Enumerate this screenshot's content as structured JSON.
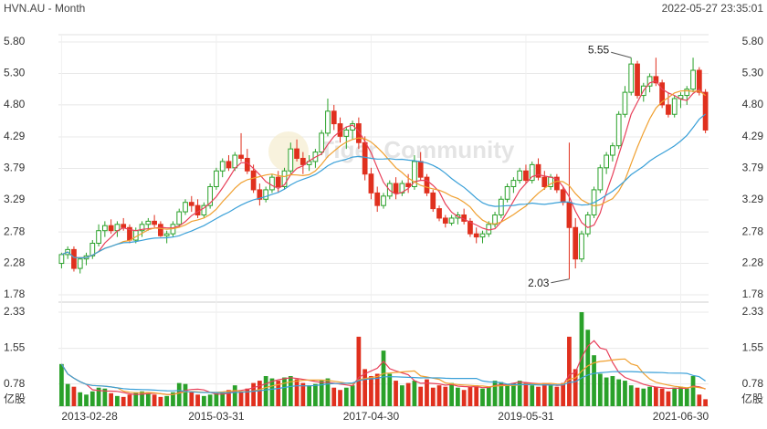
{
  "header": {
    "title": "HVN.AU - Month",
    "timestamp": "2022-05-27 23:35:01"
  },
  "watermark": "Tiger Community",
  "colors": {
    "up": "#2aa12a",
    "down": "#e0301e",
    "ma_fast": "#e8405a",
    "ma_mid": "#f0a030",
    "ma_slow": "#3aa0d8",
    "grid": "#e8e8e8"
  },
  "chart_data": [
    {
      "type": "candlestick",
      "title": "",
      "ylabel": "",
      "ylim": [
        1.78,
        5.8
      ],
      "y_ticks": [
        "5.80",
        "5.30",
        "4.80",
        "4.29",
        "3.79",
        "3.29",
        "2.78",
        "2.28",
        "1.78"
      ],
      "x_ticks": [
        "2013-02-28",
        "2015-03-31",
        "2017-04-30",
        "2019-05-31",
        "2021-06-30"
      ],
      "annotations": [
        {
          "label": "5.55",
          "value": 5.55
        },
        {
          "label": "2.03",
          "value": 2.03
        }
      ],
      "candles": [
        [
          2.28,
          2.45,
          2.2,
          2.42
        ],
        [
          2.42,
          2.55,
          2.35,
          2.5
        ],
        [
          2.5,
          2.55,
          2.15,
          2.2
        ],
        [
          2.2,
          2.38,
          2.12,
          2.35
        ],
        [
          2.35,
          2.45,
          2.25,
          2.4
        ],
        [
          2.4,
          2.65,
          2.35,
          2.6
        ],
        [
          2.6,
          2.9,
          2.55,
          2.8
        ],
        [
          2.8,
          2.95,
          2.7,
          2.88
        ],
        [
          2.88,
          2.98,
          2.75,
          2.8
        ],
        [
          2.8,
          2.95,
          2.7,
          2.9
        ],
        [
          2.9,
          3.0,
          2.8,
          2.85
        ],
        [
          2.85,
          2.9,
          2.6,
          2.65
        ],
        [
          2.65,
          2.85,
          2.6,
          2.8
        ],
        [
          2.8,
          2.95,
          2.7,
          2.9
        ],
        [
          2.9,
          3.0,
          2.8,
          2.95
        ],
        [
          2.95,
          3.05,
          2.85,
          2.9
        ],
        [
          2.9,
          2.95,
          2.7,
          2.72
        ],
        [
          2.72,
          2.8,
          2.6,
          2.75
        ],
        [
          2.75,
          2.95,
          2.7,
          2.9
        ],
        [
          2.9,
          3.15,
          2.85,
          3.1
        ],
        [
          3.1,
          3.3,
          3.05,
          3.25
        ],
        [
          3.25,
          3.35,
          3.1,
          3.2
        ],
        [
          3.2,
          3.3,
          3.0,
          3.05
        ],
        [
          3.05,
          3.25,
          3.0,
          3.2
        ],
        [
          3.2,
          3.55,
          3.15,
          3.5
        ],
        [
          3.5,
          3.8,
          3.45,
          3.75
        ],
        [
          3.75,
          3.95,
          3.65,
          3.9
        ],
        [
          3.9,
          4.0,
          3.75,
          3.8
        ],
        [
          3.8,
          4.05,
          3.75,
          4.0
        ],
        [
          4.0,
          4.35,
          3.9,
          3.95
        ],
        [
          3.95,
          4.1,
          3.7,
          3.75
        ],
        [
          3.75,
          3.85,
          3.4,
          3.45
        ],
        [
          3.45,
          3.55,
          3.2,
          3.3
        ],
        [
          3.3,
          3.5,
          3.25,
          3.45
        ],
        [
          3.45,
          3.7,
          3.4,
          3.65
        ],
        [
          3.65,
          3.75,
          3.4,
          3.5
        ],
        [
          3.5,
          3.8,
          3.45,
          3.75
        ],
        [
          3.75,
          4.2,
          3.7,
          4.1
        ],
        [
          4.1,
          4.25,
          3.9,
          3.95
        ],
        [
          3.95,
          4.05,
          3.7,
          3.85
        ],
        [
          3.85,
          4.0,
          3.75,
          3.9
        ],
        [
          3.9,
          4.1,
          3.8,
          4.05
        ],
        [
          4.05,
          4.4,
          4.0,
          4.35
        ],
        [
          4.35,
          4.9,
          4.3,
          4.7
        ],
        [
          4.7,
          4.8,
          4.4,
          4.5
        ],
        [
          4.5,
          4.6,
          4.2,
          4.3
        ],
        [
          4.3,
          4.45,
          4.1,
          4.4
        ],
        [
          4.4,
          4.55,
          4.25,
          4.5
        ],
        [
          4.5,
          4.6,
          4.1,
          4.2
        ],
        [
          4.2,
          4.3,
          3.6,
          3.7
        ],
        [
          3.7,
          3.8,
          3.3,
          3.4
        ],
        [
          3.4,
          3.5,
          3.1,
          3.2
        ],
        [
          3.2,
          3.4,
          3.15,
          3.35
        ],
        [
          3.35,
          3.6,
          3.3,
          3.55
        ],
        [
          3.55,
          3.65,
          3.3,
          3.4
        ],
        [
          3.4,
          3.6,
          3.35,
          3.55
        ],
        [
          3.55,
          3.7,
          3.4,
          3.5
        ],
        [
          3.5,
          4.0,
          3.45,
          3.9
        ],
        [
          3.9,
          4.05,
          3.6,
          3.65
        ],
        [
          3.65,
          3.7,
          3.35,
          3.4
        ],
        [
          3.4,
          3.45,
          3.1,
          3.15
        ],
        [
          3.15,
          3.2,
          2.95,
          3.0
        ],
        [
          3.0,
          3.05,
          2.85,
          2.92
        ],
        [
          2.92,
          3.05,
          2.88,
          3.0
        ],
        [
          3.0,
          3.1,
          2.9,
          3.05
        ],
        [
          3.05,
          3.15,
          2.9,
          2.95
        ],
        [
          2.95,
          3.0,
          2.7,
          2.75
        ],
        [
          2.75,
          2.85,
          2.6,
          2.7
        ],
        [
          2.7,
          2.8,
          2.6,
          2.75
        ],
        [
          2.75,
          2.95,
          2.7,
          2.9
        ],
        [
          2.9,
          3.1,
          2.85,
          3.05
        ],
        [
          3.05,
          3.35,
          3.0,
          3.3
        ],
        [
          3.3,
          3.55,
          3.25,
          3.5
        ],
        [
          3.5,
          3.65,
          3.4,
          3.6
        ],
        [
          3.6,
          3.8,
          3.55,
          3.75
        ],
        [
          3.75,
          3.85,
          3.55,
          3.6
        ],
        [
          3.6,
          3.9,
          3.55,
          3.85
        ],
        [
          3.85,
          3.95,
          3.6,
          3.65
        ],
        [
          3.65,
          3.75,
          3.45,
          3.5
        ],
        [
          3.5,
          3.7,
          3.45,
          3.65
        ],
        [
          3.65,
          3.7,
          3.4,
          3.45
        ],
        [
          3.45,
          3.5,
          3.2,
          3.25
        ],
        [
          3.25,
          4.2,
          2.03,
          2.85
        ],
        [
          2.85,
          3.0,
          2.2,
          2.35
        ],
        [
          2.35,
          2.8,
          2.3,
          2.75
        ],
        [
          2.75,
          3.1,
          2.7,
          3.05
        ],
        [
          3.05,
          3.5,
          3.0,
          3.45
        ],
        [
          3.45,
          3.85,
          3.4,
          3.8
        ],
        [
          3.8,
          4.05,
          3.7,
          4.0
        ],
        [
          4.0,
          4.2,
          3.9,
          4.15
        ],
        [
          4.15,
          4.7,
          4.1,
          4.65
        ],
        [
          4.65,
          5.1,
          4.6,
          5.0
        ],
        [
          5.0,
          5.55,
          4.95,
          5.45
        ],
        [
          5.45,
          5.5,
          4.9,
          4.95
        ],
        [
          4.95,
          5.15,
          4.85,
          5.1
        ],
        [
          5.1,
          5.3,
          5.0,
          5.25
        ],
        [
          5.25,
          5.55,
          5.1,
          5.15
        ],
        [
          5.15,
          5.2,
          4.75,
          4.8
        ],
        [
          4.8,
          5.0,
          4.6,
          4.65
        ],
        [
          4.65,
          4.95,
          4.6,
          4.9
        ],
        [
          4.9,
          5.0,
          4.75,
          4.95
        ],
        [
          4.95,
          5.1,
          4.8,
          5.05
        ],
        [
          5.05,
          5.55,
          5.0,
          5.35
        ],
        [
          5.35,
          5.4,
          4.95,
          5.0
        ],
        [
          5.0,
          5.05,
          4.35,
          4.4
        ]
      ]
    },
    {
      "type": "bar",
      "title": "",
      "ylabel": "",
      "unit_label": "亿股",
      "ylim": [
        0.3,
        2.33
      ],
      "y_ticks": [
        "2.33",
        "1.55",
        "0.78"
      ],
      "values": [
        1.21,
        0.78,
        0.72,
        0.6,
        0.55,
        0.62,
        0.7,
        0.68,
        0.58,
        0.52,
        0.5,
        0.55,
        0.6,
        0.62,
        0.58,
        0.55,
        0.5,
        0.52,
        0.6,
        0.8,
        0.78,
        0.6,
        0.55,
        0.52,
        0.55,
        0.58,
        0.6,
        0.65,
        0.75,
        0.62,
        0.68,
        0.8,
        0.85,
        0.95,
        0.9,
        0.85,
        0.92,
        0.95,
        0.88,
        0.8,
        0.75,
        0.78,
        0.85,
        0.9,
        0.7,
        0.65,
        0.7,
        0.75,
        1.8,
        1.1,
        0.95,
        1.0,
        1.5,
        1.0,
        0.85,
        0.75,
        0.8,
        0.85,
        0.72,
        0.88,
        0.7,
        0.75,
        0.72,
        0.8,
        0.7,
        0.65,
        0.72,
        0.75,
        0.68,
        0.72,
        0.85,
        0.82,
        0.78,
        0.8,
        0.85,
        0.8,
        0.75,
        0.72,
        0.8,
        0.75,
        0.72,
        0.8,
        1.8,
        1.1,
        2.33,
        1.95,
        1.4,
        1.0,
        0.92,
        0.95,
        0.88,
        0.85,
        0.75,
        0.7,
        0.68,
        0.72,
        0.72,
        0.68,
        0.62,
        0.7,
        0.72,
        0.68,
        0.95,
        0.55,
        0.45
      ]
    }
  ]
}
